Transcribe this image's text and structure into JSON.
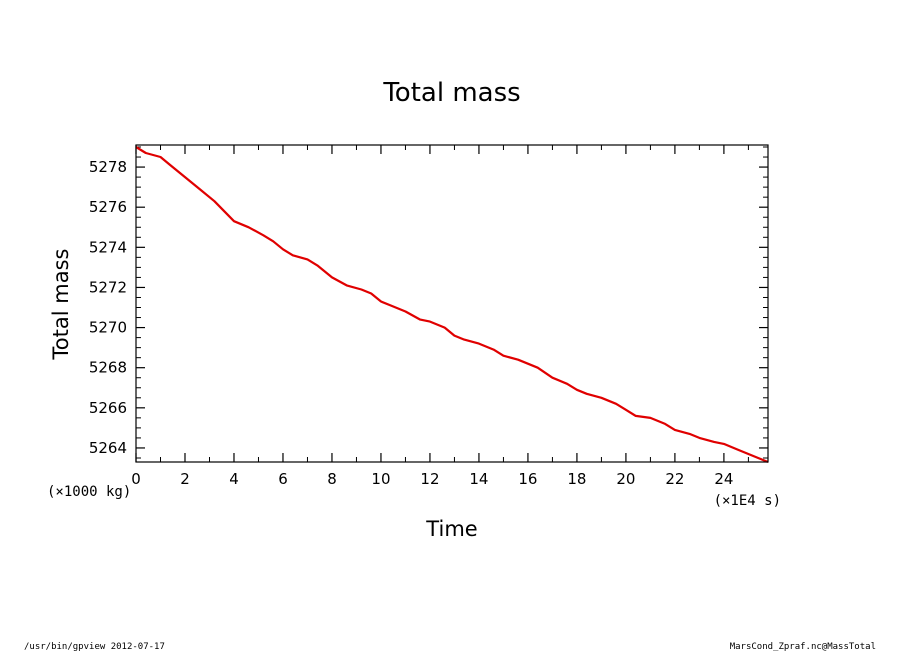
{
  "chart_data": {
    "type": "line",
    "title": "Total mass",
    "xlabel": "Time",
    "ylabel": "Total mass",
    "x_scale_note": "(×1E4 s)",
    "y_scale_note": "(×1000 kg)",
    "xlim": [
      0,
      25.8
    ],
    "ylim": [
      5263.3,
      5279.1
    ],
    "xticks": [
      0,
      2,
      4,
      6,
      8,
      10,
      12,
      14,
      16,
      18,
      20,
      22,
      24
    ],
    "yticks": [
      5264,
      5266,
      5268,
      5270,
      5272,
      5274,
      5276,
      5278
    ],
    "grid": false,
    "line_color": "#e00000",
    "series": [
      {
        "x": [
          0,
          0.4,
          1.0,
          1.4,
          2.0,
          2.6,
          3.2,
          3.6,
          4.0,
          4.6,
          5.2,
          5.6,
          6.0,
          6.4,
          7.0,
          7.4,
          8.0,
          8.6,
          9.2,
          9.6,
          10.0,
          10.4,
          11.0,
          11.6,
          12.0,
          12.6,
          13.0,
          13.4,
          14.0,
          14.6,
          15.0,
          15.6,
          16.0,
          16.4,
          17.0,
          17.6,
          18.0,
          18.4,
          19.0,
          19.6,
          20.0,
          20.4,
          21.0,
          21.6,
          22.0,
          22.6,
          23.0,
          23.6,
          24.0,
          24.6,
          25.0,
          25.4,
          25.8
        ],
        "y": [
          5279.0,
          5278.7,
          5278.5,
          5278.1,
          5277.5,
          5276.9,
          5276.3,
          5275.8,
          5275.3,
          5275.0,
          5274.6,
          5274.3,
          5273.9,
          5273.6,
          5273.4,
          5273.1,
          5272.5,
          5272.1,
          5271.9,
          5271.7,
          5271.3,
          5271.1,
          5270.8,
          5270.4,
          5270.3,
          5270.0,
          5269.6,
          5269.4,
          5269.2,
          5268.9,
          5268.6,
          5268.4,
          5268.2,
          5268.0,
          5267.5,
          5267.2,
          5266.9,
          5266.7,
          5266.5,
          5266.2,
          5265.9,
          5265.6,
          5265.5,
          5265.2,
          5264.9,
          5264.7,
          5264.5,
          5264.3,
          5264.2,
          5263.9,
          5263.7,
          5263.5,
          5263.3
        ]
      }
    ]
  },
  "footer": {
    "left": "/usr/bin/gpview  2012-07-17",
    "right": "MarsCond_Zpraf.nc@MassTotal"
  }
}
